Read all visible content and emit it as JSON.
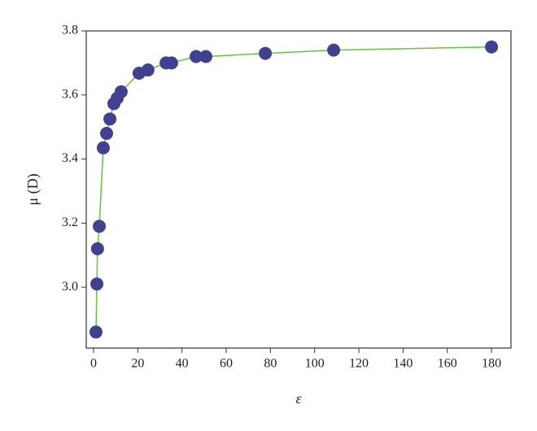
{
  "chart_data": {
    "type": "line",
    "x_label": "ε",
    "y_label": "μ (D)",
    "x": [
      1.1,
      1.5,
      1.8,
      2.6,
      4.4,
      5.9,
      7.4,
      9.2,
      10.7,
      12.5,
      20.6,
      24.6,
      32.8,
      35.3,
      46.4,
      50.8,
      77.7,
      108.6,
      180
    ],
    "series": [
      {
        "color": "#41418f",
        "line_color": "#6abf45",
        "values": [
          2.86,
          3.01,
          3.12,
          3.19,
          3.435,
          3.48,
          3.525,
          3.573,
          3.59,
          3.61,
          3.668,
          3.678,
          3.7,
          3.7,
          3.72,
          3.72,
          3.73,
          3.74,
          3.75
        ]
      }
    ],
    "xlim": [
      -3.3,
      188.8
    ],
    "ylim": [
      2.81,
      3.8
    ],
    "xticks": [
      0,
      20,
      40,
      60,
      80,
      100,
      120,
      140,
      160,
      180
    ],
    "yticks": [
      {
        "value": 3,
        "label": "3.0"
      },
      3.2,
      3.4,
      3.6,
      3.8
    ],
    "grid": false
  }
}
